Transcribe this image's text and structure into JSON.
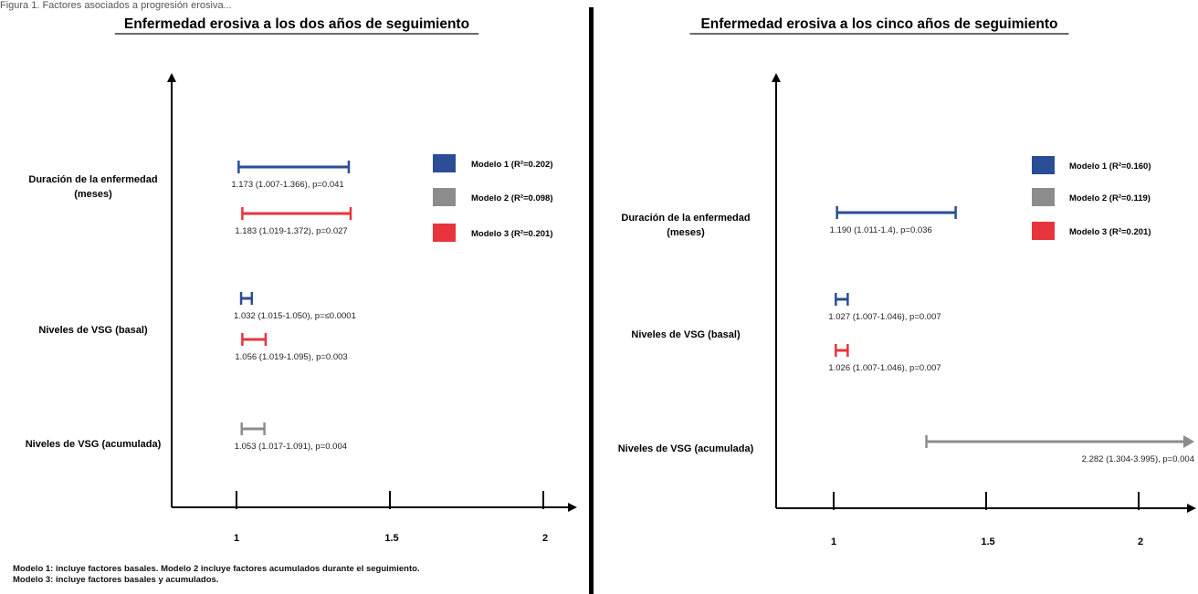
{
  "caption": "Figura 1. Factores asociados a progresión erosiva...",
  "footnote": "Modelo 1: incluye factores basales. Modelo 2 incluye factores acumulados durante el seguimiento. Modelo 3: incluye factores basales y acumulados.",
  "colors": {
    "modelo1": "#2b4d96",
    "modelo2": "#8c8c8c",
    "modelo3": "#e8343c"
  },
  "chart_data": [
    {
      "type": "forest",
      "title": "Enfermedad erosiva a los dos años de seguimiento",
      "x_ticks": [
        1,
        1.5,
        2
      ],
      "tick_labels": [
        "1",
        "1.5",
        "2"
      ],
      "legend": [
        {
          "label": "Modelo 1 (R²=0.202)",
          "model": "modelo1"
        },
        {
          "label": "Modelo 2 (R²=0.098)",
          "model": "modelo2"
        },
        {
          "label": "Modelo 3 (R²=0.201)",
          "model": "modelo3"
        }
      ],
      "variables": [
        {
          "label": [
            "Duración de la enfermedad",
            "(meses)"
          ],
          "estimates": [
            {
              "model": "modelo1",
              "or": 1.173,
              "lo": 1.007,
              "hi": 1.366,
              "text": "1.173 (1.007-1.366), p=0.041"
            },
            {
              "model": "modelo3",
              "or": 1.183,
              "lo": 1.019,
              "hi": 1.372,
              "text": "1.183 (1.019-1.372), p=0.027"
            }
          ]
        },
        {
          "label": [
            "Niveles de VSG (basal)"
          ],
          "estimates": [
            {
              "model": "modelo1",
              "or": 1.032,
              "lo": 1.015,
              "hi": 1.05,
              "text": "1.032 (1.015-1.050), p=≤0.0001"
            },
            {
              "model": "modelo3",
              "or": 1.056,
              "lo": 1.019,
              "hi": 1.095,
              "text": "1.056 (1.019-1.095), p=0.003"
            }
          ]
        },
        {
          "label": [
            "Niveles de VSG (acumulada)"
          ],
          "estimates": [
            {
              "model": "modelo2",
              "or": 1.053,
              "lo": 1.017,
              "hi": 1.091,
              "text": "1.053 (1.017-1.091), p=0.004"
            }
          ]
        }
      ]
    },
    {
      "type": "forest",
      "title": "Enfermedad erosiva a los cinco años de seguimiento",
      "x_ticks": [
        1,
        1.5,
        2
      ],
      "tick_labels": [
        "1",
        "1.5",
        "2"
      ],
      "legend": [
        {
          "label": "Modelo 1 (R²=0.160)",
          "model": "modelo1"
        },
        {
          "label": "Modelo 2 (R²=0.119)",
          "model": "modelo2"
        },
        {
          "label": "Modelo 3 (R²=0.201)",
          "model": "modelo3"
        }
      ],
      "variables": [
        {
          "label": [
            "Duración de la enfermedad",
            "(meses)"
          ],
          "estimates": [
            {
              "model": "modelo1",
              "or": 1.19,
              "lo": 1.011,
              "hi": 1.4,
              "text": "1.190 (1.011-1.4), p=0.036"
            }
          ]
        },
        {
          "label": [
            "Niveles de VSG (basal)"
          ],
          "estimates": [
            {
              "model": "modelo1",
              "or": 1.027,
              "lo": 1.007,
              "hi": 1.046,
              "text": "1.027 (1.007-1.046), p=0.007"
            },
            {
              "model": "modelo3",
              "or": 1.026,
              "lo": 1.007,
              "hi": 1.046,
              "text": "1.026 (1.007-1.046), p=0.007"
            }
          ]
        },
        {
          "label": [
            "Niveles de VSG (acumulada)"
          ],
          "estimates": [
            {
              "model": "modelo2",
              "or": 2.282,
              "lo": 1.304,
              "hi": 3.995,
              "text": "2.282 (1.304-3.995), p=0.004"
            }
          ]
        }
      ]
    }
  ]
}
